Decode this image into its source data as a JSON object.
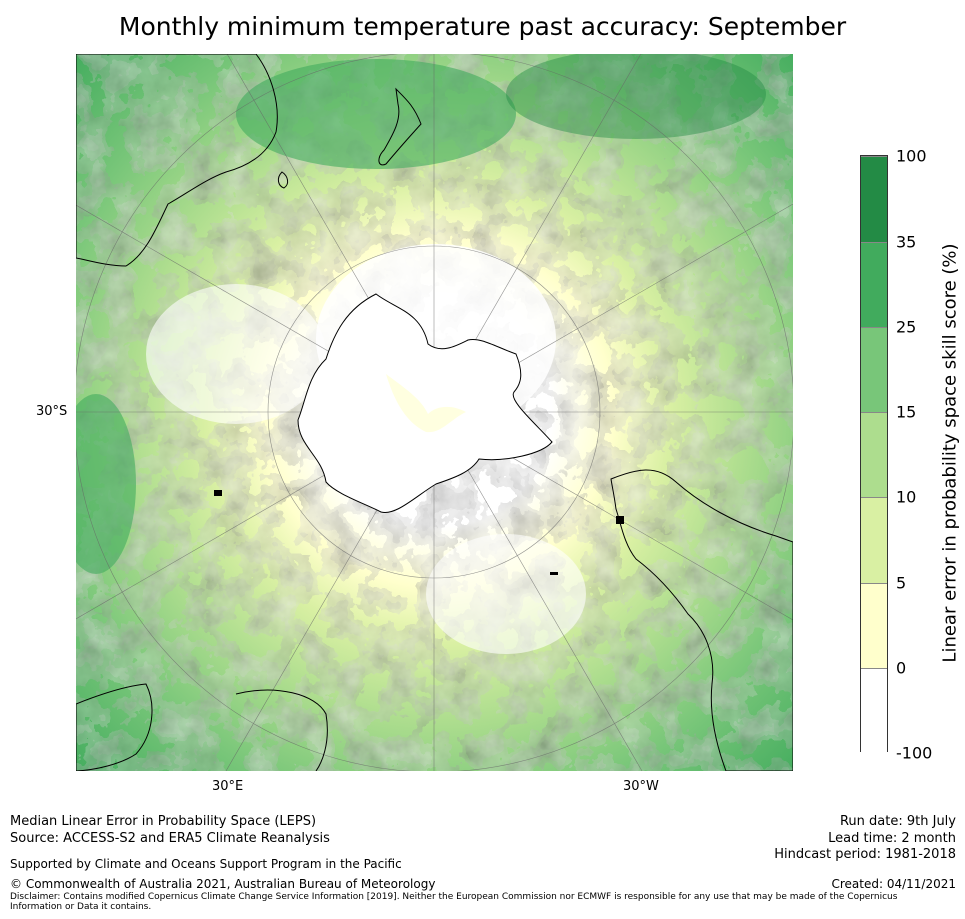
{
  "title": "Monthly minimum temperature past accuracy: September",
  "map": {
    "projection": "south-polar-stereographic",
    "lat_label": "30°S",
    "lon_labels": [
      "30°E",
      "30°W"
    ]
  },
  "colorbar": {
    "label": "Linear error in probability space skill score (%)",
    "ticks": [
      "100",
      "35",
      "25",
      "15",
      "10",
      "5",
      "0",
      "-100"
    ],
    "bins": [
      {
        "range": "35 to 100",
        "color": "#238b45"
      },
      {
        "range": "25 to 35",
        "color": "#41ab5d"
      },
      {
        "range": "15 to 25",
        "color": "#78c679"
      },
      {
        "range": "10 to 15",
        "color": "#addd8e"
      },
      {
        "range": "5 to 10",
        "color": "#d9f0a3"
      },
      {
        "range": "0 to 5",
        "color": "#ffffcc"
      },
      {
        "range": "-100 to 0",
        "color": "#ffffff"
      }
    ]
  },
  "footer": {
    "left_line1": "Median Linear Error in Probability Space (LEPS)",
    "left_line2": "Source: ACCESS-S2 and ERA5 Climate Reanalysis",
    "support": "Supported by Climate and Oceans Support Program in the Pacific",
    "copyright": "© Commonwealth of Australia 2021, Australian Bureau of Meteorology",
    "run_date": "Run date: 9th July",
    "lead_time": "Lead time: 2 month",
    "hindcast": "Hindcast period: 1981-2018",
    "created": "Created: 04/11/2021",
    "disclaimer": "Disclaimer: Contains modified Copernicus Climate Change Service Information [2019]. Neither the European Commission nor ECMWF is responsible for any use that may be made of the Copernicus Information or Data it contains."
  }
}
